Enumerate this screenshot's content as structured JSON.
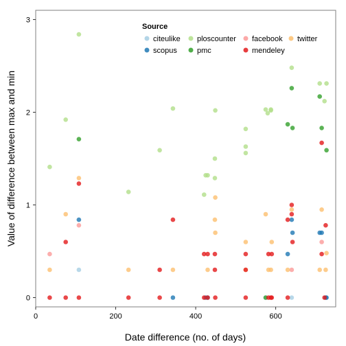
{
  "chart_data": {
    "type": "scatter",
    "title": "",
    "xlabel": "Date difference (no. of days)",
    "ylabel": "Value of difference between max and min",
    "xlim": [
      0,
      750
    ],
    "ylim": [
      -0.1,
      3.1
    ],
    "x_ticks": [
      0,
      200,
      400,
      600
    ],
    "y_ticks": [
      0,
      1,
      2,
      3
    ],
    "grid": false,
    "legend": {
      "title": "Source",
      "placement": "top-center",
      "entries": [
        {
          "name": "citeulike",
          "color": "#A6CEE3"
        },
        {
          "name": "ploscounter",
          "color": "#B2DF8A"
        },
        {
          "name": "facebook",
          "color": "#FB9A99"
        },
        {
          "name": "twitter",
          "color": "#FDBF6F"
        },
        {
          "name": "scopus",
          "color": "#1F78B4"
        },
        {
          "name": "pmc",
          "color": "#33A02C"
        },
        {
          "name": "mendeley",
          "color": "#E31A1C"
        }
      ]
    },
    "series": [
      {
        "name": "citeulike",
        "color": "#A6CEE3",
        "points": [
          [
            108,
            0.3
          ],
          [
            575,
            0
          ],
          [
            640,
            0
          ]
        ]
      },
      {
        "name": "ploscounter",
        "color": "#B2DF8A",
        "points": [
          [
            35,
            1.41
          ],
          [
            75,
            1.92
          ],
          [
            108,
            2.84
          ],
          [
            232,
            1.14
          ],
          [
            310,
            1.59
          ],
          [
            343,
            2.04
          ],
          [
            421,
            1.11
          ],
          [
            425,
            1.32
          ],
          [
            430,
            1.32
          ],
          [
            448,
            1.5
          ],
          [
            448,
            1.29
          ],
          [
            449,
            2.02
          ],
          [
            525,
            1.63
          ],
          [
            525,
            1.82
          ],
          [
            525,
            1.56
          ],
          [
            575,
            2.03
          ],
          [
            580,
            1.99
          ],
          [
            588,
            2.03
          ],
          [
            588,
            2.02
          ],
          [
            640,
            2.48
          ],
          [
            710,
            2.31
          ],
          [
            722,
            2.12
          ],
          [
            727,
            2.31
          ]
        ]
      },
      {
        "name": "facebook",
        "color": "#FB9A99",
        "points": [
          [
            35,
            0.47
          ],
          [
            108,
            0.78
          ],
          [
            640,
            0.3
          ],
          [
            715,
            0.6
          ]
        ]
      },
      {
        "name": "twitter",
        "color": "#FDBF6F",
        "points": [
          [
            35,
            0.3
          ],
          [
            75,
            0.9
          ],
          [
            108,
            1.29
          ],
          [
            232,
            0.3
          ],
          [
            343,
            0.3
          ],
          [
            430,
            0.3
          ],
          [
            448,
            0.84
          ],
          [
            449,
            0.7
          ],
          [
            449,
            1.08
          ],
          [
            525,
            0.6
          ],
          [
            525,
            0.3
          ],
          [
            575,
            0.9
          ],
          [
            582,
            0.3
          ],
          [
            588,
            0.3
          ],
          [
            590,
            0.6
          ],
          [
            630,
            0.3
          ],
          [
            640,
            0.95
          ],
          [
            710,
            0.3
          ],
          [
            715,
            0.95
          ],
          [
            725,
            0.3
          ],
          [
            727,
            0.48
          ]
        ]
      },
      {
        "name": "scopus",
        "color": "#1F78B4",
        "points": [
          [
            108,
            0.84
          ],
          [
            343,
            0
          ],
          [
            425,
            0
          ],
          [
            430,
            0
          ],
          [
            630,
            0.47
          ],
          [
            640,
            0.84
          ],
          [
            642,
            0.7
          ],
          [
            710,
            0.7
          ],
          [
            715,
            0.7
          ],
          [
            725,
            0
          ],
          [
            727,
            0
          ]
        ]
      },
      {
        "name": "pmc",
        "color": "#33A02C",
        "points": [
          [
            108,
            1.71
          ],
          [
            575,
            0
          ],
          [
            630,
            1.87
          ],
          [
            640,
            2.26
          ],
          [
            642,
            1.83
          ],
          [
            710,
            2.17
          ],
          [
            715,
            1.83
          ],
          [
            727,
            1.59
          ]
        ]
      },
      {
        "name": "mendeley",
        "color": "#E31A1C",
        "points": [
          [
            35,
            0
          ],
          [
            75,
            0.6
          ],
          [
            75,
            0
          ],
          [
            108,
            1.23
          ],
          [
            108,
            0
          ],
          [
            232,
            0
          ],
          [
            310,
            0.3
          ],
          [
            310,
            0
          ],
          [
            343,
            0.84
          ],
          [
            421,
            0.47
          ],
          [
            421,
            0
          ],
          [
            430,
            0.47
          ],
          [
            430,
            0
          ],
          [
            448,
            0.3
          ],
          [
            448,
            0.47
          ],
          [
            449,
            0
          ],
          [
            525,
            0.47
          ],
          [
            525,
            0.3
          ],
          [
            525,
            0
          ],
          [
            582,
            0.47
          ],
          [
            582,
            0
          ],
          [
            588,
            0
          ],
          [
            590,
            0.47
          ],
          [
            590,
            0
          ],
          [
            630,
            0.84
          ],
          [
            630,
            0
          ],
          [
            640,
            1.0
          ],
          [
            640,
            0.9
          ],
          [
            642,
            0.6
          ],
          [
            715,
            1.67
          ],
          [
            715,
            0.47
          ],
          [
            725,
            0.78
          ],
          [
            722,
            0
          ]
        ]
      }
    ]
  }
}
